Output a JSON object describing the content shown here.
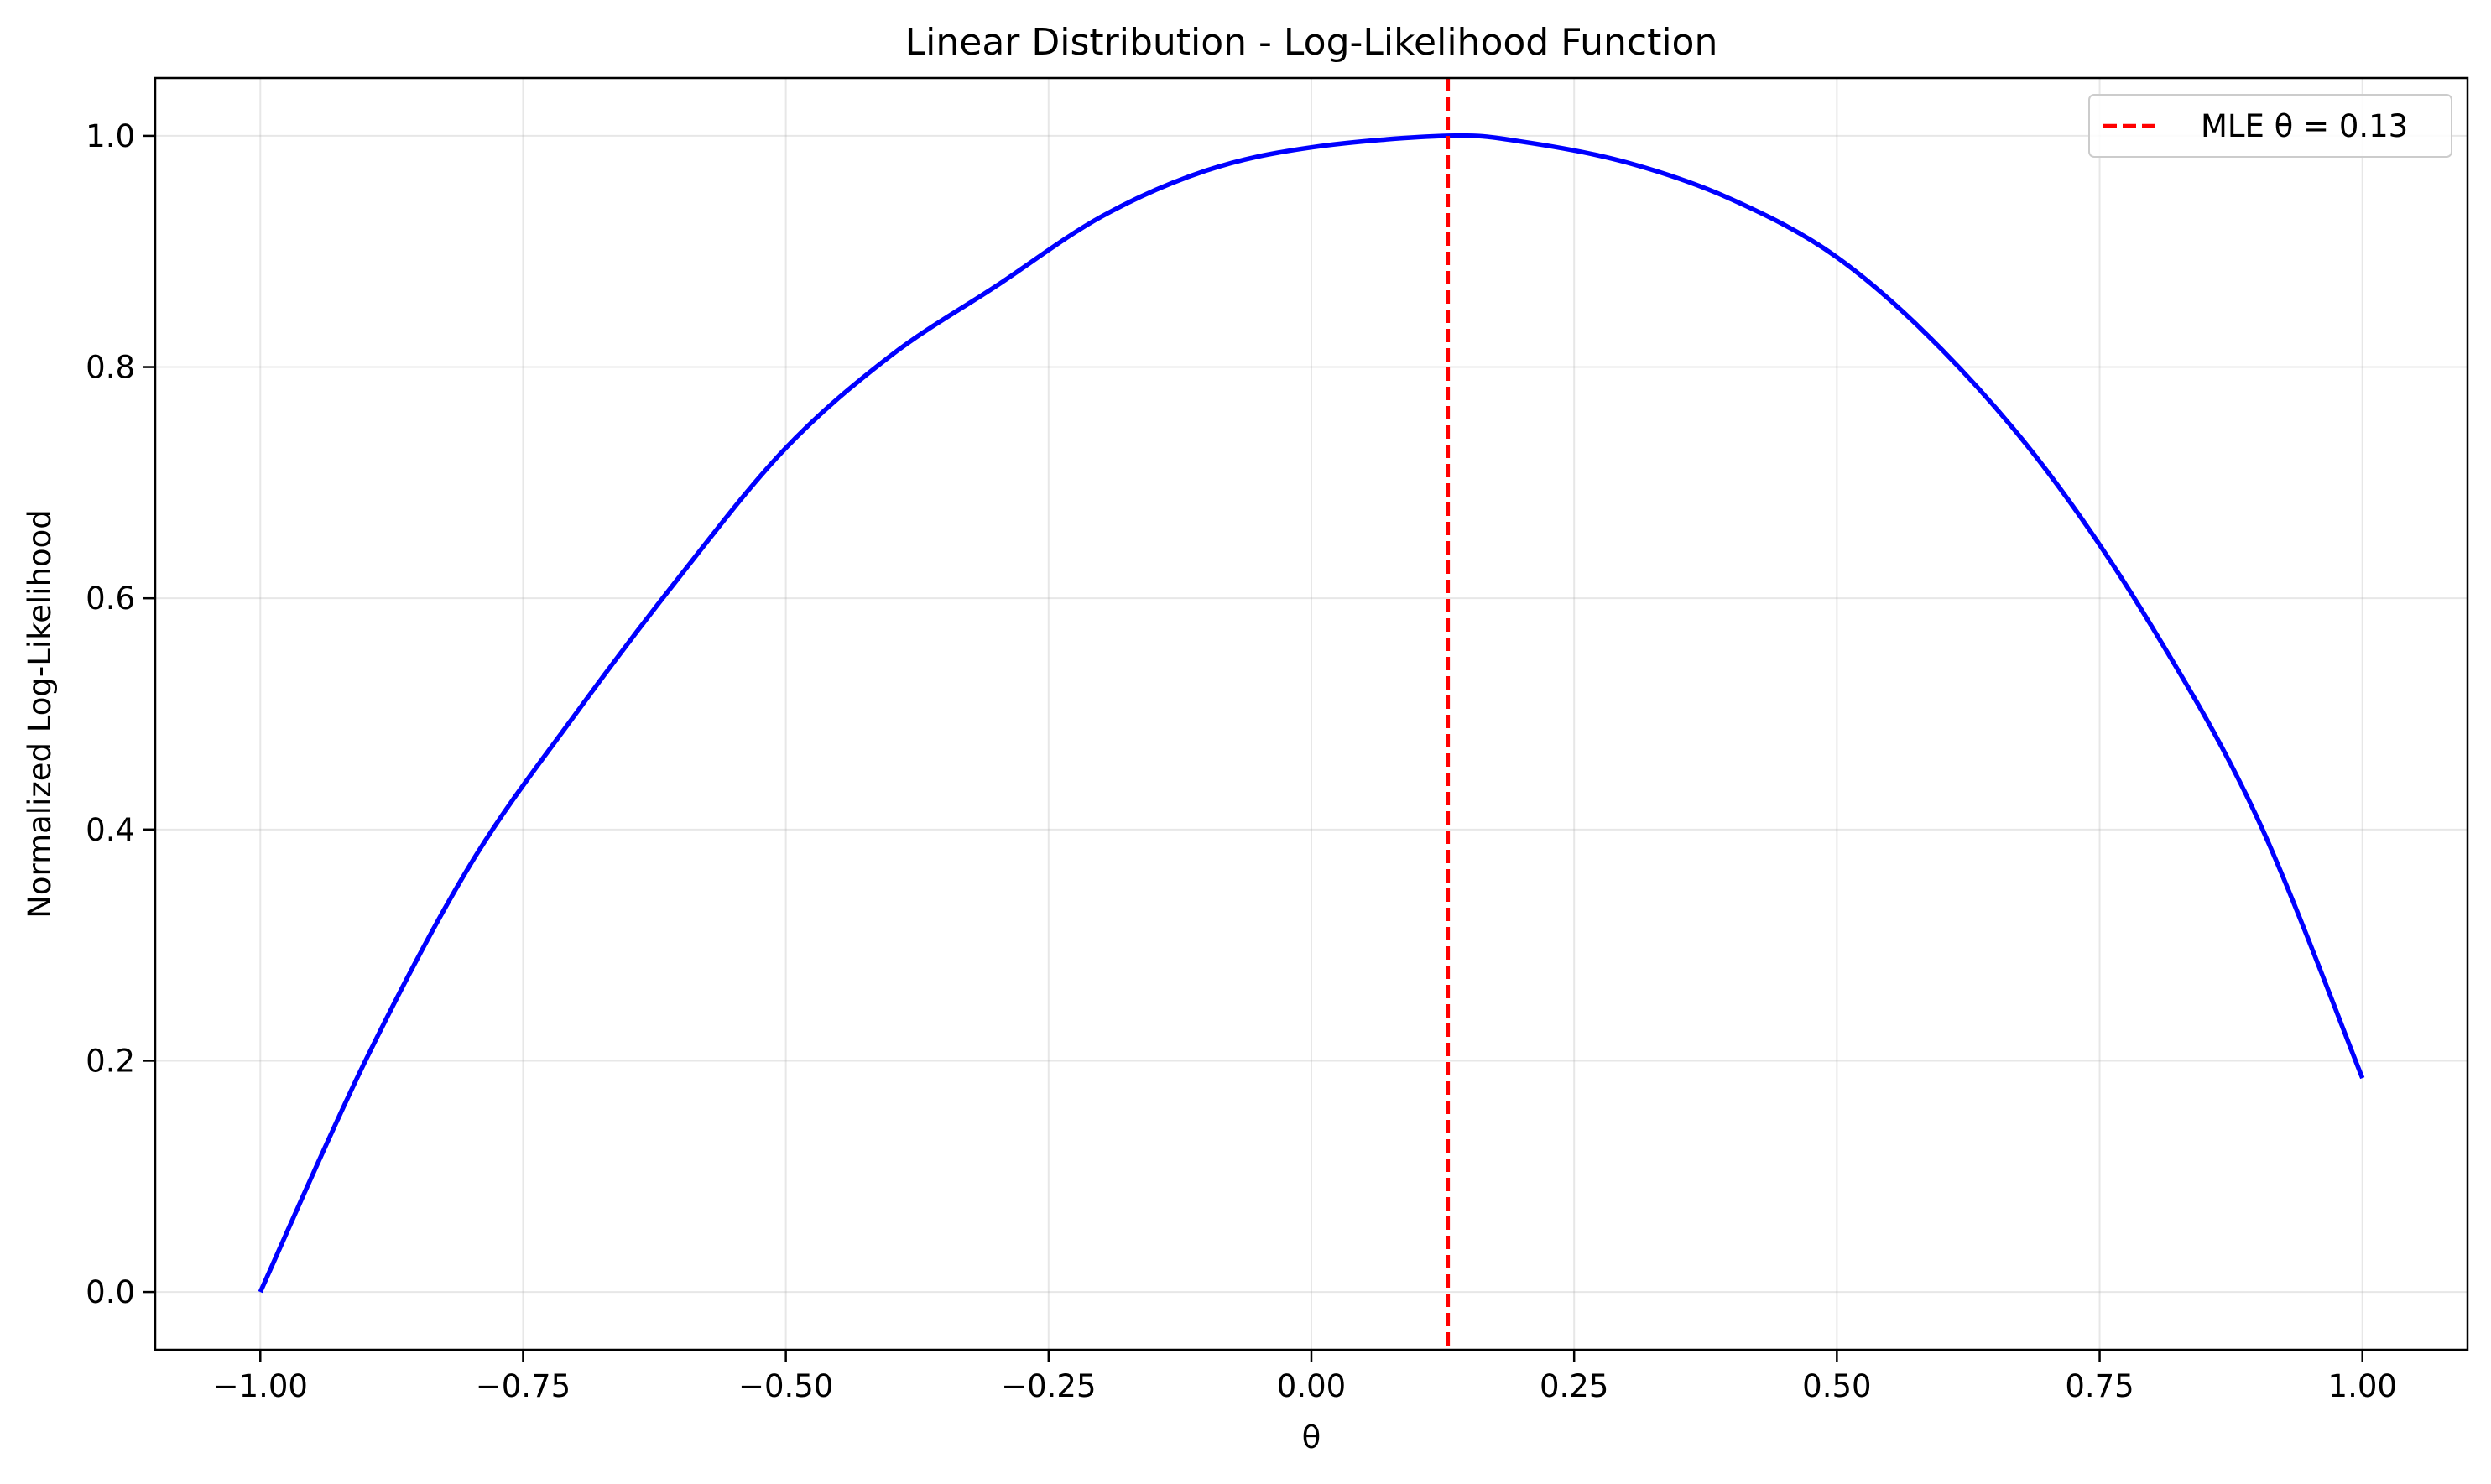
{
  "chart_data": {
    "type": "line",
    "title": "Linear Distribution - Log-Likelihood Function",
    "xlabel": "θ",
    "ylabel": "Normalized Log-Likelihood",
    "xlim": [
      -1.1,
      1.1
    ],
    "ylim": [
      -0.05,
      1.05
    ],
    "xticks": [
      -1.0,
      -0.75,
      -0.5,
      -0.25,
      0.0,
      0.25,
      0.5,
      0.75,
      1.0
    ],
    "xtick_labels": [
      "−1.00",
      "−0.75",
      "−0.50",
      "−0.25",
      "0.00",
      "0.25",
      "0.50",
      "0.75",
      "1.00"
    ],
    "yticks": [
      0.0,
      0.2,
      0.4,
      0.6,
      0.8,
      1.0
    ],
    "ytick_labels": [
      "0.0",
      "0.2",
      "0.4",
      "0.6",
      "0.8",
      "1.0"
    ],
    "grid": true,
    "legend_position": "upper-right",
    "series": [
      {
        "name": "",
        "color": "#0000ff",
        "style": "solid",
        "x": [
          -1.0,
          -0.9,
          -0.8,
          -0.7,
          -0.6,
          -0.5,
          -0.4,
          -0.3,
          -0.2,
          -0.1,
          0.0,
          0.13,
          0.2,
          0.3,
          0.4,
          0.5,
          0.6,
          0.7,
          0.8,
          0.9,
          1.0
        ],
        "y": [
          0.0,
          0.2,
          0.37,
          0.5,
          0.62,
          0.73,
          0.81,
          0.87,
          0.93,
          0.97,
          0.99,
          1.0,
          0.995,
          0.977,
          0.945,
          0.895,
          0.815,
          0.71,
          0.575,
          0.41,
          0.185
        ]
      }
    ],
    "reference_lines": [
      {
        "orientation": "vertical",
        "x": 0.13,
        "color": "#ff0000",
        "style": "dashed",
        "label": "MLE θ = 0.13"
      }
    ]
  }
}
